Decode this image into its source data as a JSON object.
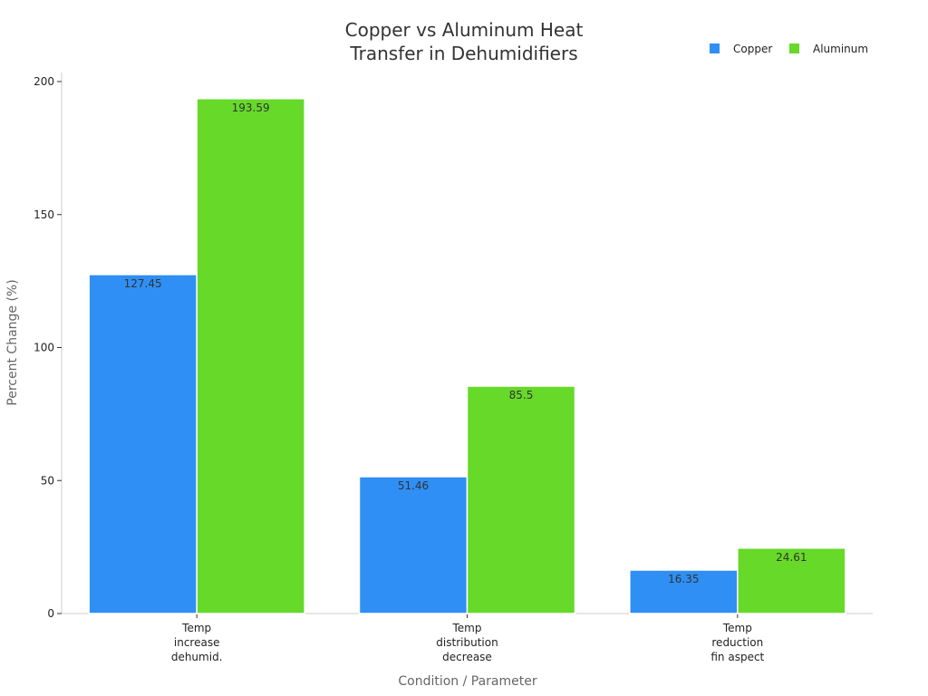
{
  "chart_data": {
    "type": "bar",
    "title": "Copper vs Aluminum Heat Transfer in Dehumidifiers",
    "title_lines": [
      "Copper vs Aluminum Heat",
      "Transfer in Dehumidifiers"
    ],
    "xlabel": "Condition / Parameter",
    "ylabel": "Percent Change (%)",
    "categories": [
      "Temp increase dehumid.",
      "Temp distribution decrease",
      "Temp reduction fin aspect"
    ],
    "category_lines": [
      [
        "Temp",
        "increase",
        "dehumid."
      ],
      [
        "Temp",
        "distribution",
        "decrease"
      ],
      [
        "Temp",
        "reduction",
        "fin aspect"
      ]
    ],
    "series": [
      {
        "name": "Copper",
        "color": "#2f8ff5",
        "values": [
          127.45,
          51.46,
          16.35
        ]
      },
      {
        "name": "Aluminum",
        "color": "#66d929",
        "values": [
          193.59,
          85.5,
          24.61
        ]
      }
    ],
    "ylim": [
      0,
      200
    ],
    "yticks": [
      0,
      50,
      100,
      150,
      200
    ],
    "grid": false,
    "legend_position": "top-right"
  }
}
